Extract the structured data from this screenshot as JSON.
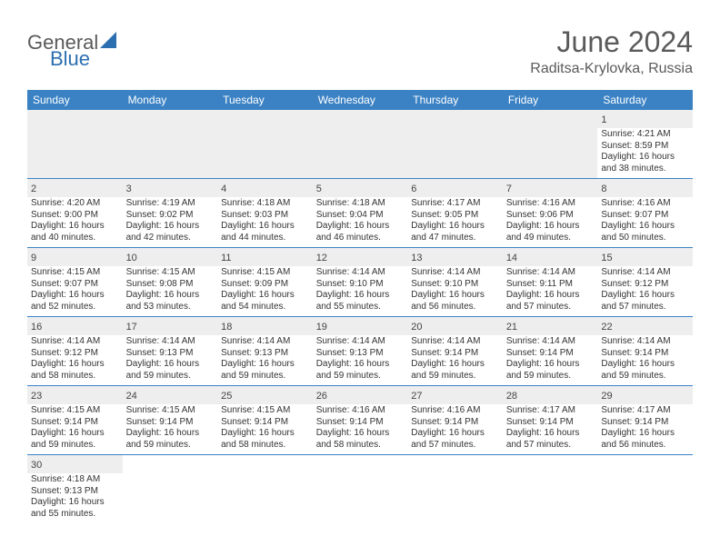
{
  "brand": {
    "part1": "General",
    "part2": "Blue"
  },
  "title": "June 2024",
  "location": "Raditsa-Krylovka, Russia",
  "colors": {
    "header_bg": "#3b82c4",
    "header_text": "#ffffff",
    "gray_band": "#eeeeee",
    "border": "#3b82c4",
    "body_text": "#333333",
    "brand_gray": "#5a5a5a",
    "brand_blue": "#2b6fb0"
  },
  "day_headers": [
    "Sunday",
    "Monday",
    "Tuesday",
    "Wednesday",
    "Thursday",
    "Friday",
    "Saturday"
  ],
  "weeks": [
    [
      null,
      null,
      null,
      null,
      null,
      null,
      {
        "n": "1",
        "lines": [
          "Sunrise: 4:21 AM",
          "Sunset: 8:59 PM",
          "Daylight: 16 hours",
          "and 38 minutes."
        ]
      }
    ],
    [
      {
        "n": "2",
        "lines": [
          "Sunrise: 4:20 AM",
          "Sunset: 9:00 PM",
          "Daylight: 16 hours",
          "and 40 minutes."
        ]
      },
      {
        "n": "3",
        "lines": [
          "Sunrise: 4:19 AM",
          "Sunset: 9:02 PM",
          "Daylight: 16 hours",
          "and 42 minutes."
        ]
      },
      {
        "n": "4",
        "lines": [
          "Sunrise: 4:18 AM",
          "Sunset: 9:03 PM",
          "Daylight: 16 hours",
          "and 44 minutes."
        ]
      },
      {
        "n": "5",
        "lines": [
          "Sunrise: 4:18 AM",
          "Sunset: 9:04 PM",
          "Daylight: 16 hours",
          "and 46 minutes."
        ]
      },
      {
        "n": "6",
        "lines": [
          "Sunrise: 4:17 AM",
          "Sunset: 9:05 PM",
          "Daylight: 16 hours",
          "and 47 minutes."
        ]
      },
      {
        "n": "7",
        "lines": [
          "Sunrise: 4:16 AM",
          "Sunset: 9:06 PM",
          "Daylight: 16 hours",
          "and 49 minutes."
        ]
      },
      {
        "n": "8",
        "lines": [
          "Sunrise: 4:16 AM",
          "Sunset: 9:07 PM",
          "Daylight: 16 hours",
          "and 50 minutes."
        ]
      }
    ],
    [
      {
        "n": "9",
        "lines": [
          "Sunrise: 4:15 AM",
          "Sunset: 9:07 PM",
          "Daylight: 16 hours",
          "and 52 minutes."
        ]
      },
      {
        "n": "10",
        "lines": [
          "Sunrise: 4:15 AM",
          "Sunset: 9:08 PM",
          "Daylight: 16 hours",
          "and 53 minutes."
        ]
      },
      {
        "n": "11",
        "lines": [
          "Sunrise: 4:15 AM",
          "Sunset: 9:09 PM",
          "Daylight: 16 hours",
          "and 54 minutes."
        ]
      },
      {
        "n": "12",
        "lines": [
          "Sunrise: 4:14 AM",
          "Sunset: 9:10 PM",
          "Daylight: 16 hours",
          "and 55 minutes."
        ]
      },
      {
        "n": "13",
        "lines": [
          "Sunrise: 4:14 AM",
          "Sunset: 9:10 PM",
          "Daylight: 16 hours",
          "and 56 minutes."
        ]
      },
      {
        "n": "14",
        "lines": [
          "Sunrise: 4:14 AM",
          "Sunset: 9:11 PM",
          "Daylight: 16 hours",
          "and 57 minutes."
        ]
      },
      {
        "n": "15",
        "lines": [
          "Sunrise: 4:14 AM",
          "Sunset: 9:12 PM",
          "Daylight: 16 hours",
          "and 57 minutes."
        ]
      }
    ],
    [
      {
        "n": "16",
        "lines": [
          "Sunrise: 4:14 AM",
          "Sunset: 9:12 PM",
          "Daylight: 16 hours",
          "and 58 minutes."
        ]
      },
      {
        "n": "17",
        "lines": [
          "Sunrise: 4:14 AM",
          "Sunset: 9:13 PM",
          "Daylight: 16 hours",
          "and 59 minutes."
        ]
      },
      {
        "n": "18",
        "lines": [
          "Sunrise: 4:14 AM",
          "Sunset: 9:13 PM",
          "Daylight: 16 hours",
          "and 59 minutes."
        ]
      },
      {
        "n": "19",
        "lines": [
          "Sunrise: 4:14 AM",
          "Sunset: 9:13 PM",
          "Daylight: 16 hours",
          "and 59 minutes."
        ]
      },
      {
        "n": "20",
        "lines": [
          "Sunrise: 4:14 AM",
          "Sunset: 9:14 PM",
          "Daylight: 16 hours",
          "and 59 minutes."
        ]
      },
      {
        "n": "21",
        "lines": [
          "Sunrise: 4:14 AM",
          "Sunset: 9:14 PM",
          "Daylight: 16 hours",
          "and 59 minutes."
        ]
      },
      {
        "n": "22",
        "lines": [
          "Sunrise: 4:14 AM",
          "Sunset: 9:14 PM",
          "Daylight: 16 hours",
          "and 59 minutes."
        ]
      }
    ],
    [
      {
        "n": "23",
        "lines": [
          "Sunrise: 4:15 AM",
          "Sunset: 9:14 PM",
          "Daylight: 16 hours",
          "and 59 minutes."
        ]
      },
      {
        "n": "24",
        "lines": [
          "Sunrise: 4:15 AM",
          "Sunset: 9:14 PM",
          "Daylight: 16 hours",
          "and 59 minutes."
        ]
      },
      {
        "n": "25",
        "lines": [
          "Sunrise: 4:15 AM",
          "Sunset: 9:14 PM",
          "Daylight: 16 hours",
          "and 58 minutes."
        ]
      },
      {
        "n": "26",
        "lines": [
          "Sunrise: 4:16 AM",
          "Sunset: 9:14 PM",
          "Daylight: 16 hours",
          "and 58 minutes."
        ]
      },
      {
        "n": "27",
        "lines": [
          "Sunrise: 4:16 AM",
          "Sunset: 9:14 PM",
          "Daylight: 16 hours",
          "and 57 minutes."
        ]
      },
      {
        "n": "28",
        "lines": [
          "Sunrise: 4:17 AM",
          "Sunset: 9:14 PM",
          "Daylight: 16 hours",
          "and 57 minutes."
        ]
      },
      {
        "n": "29",
        "lines": [
          "Sunrise: 4:17 AM",
          "Sunset: 9:14 PM",
          "Daylight: 16 hours",
          "and 56 minutes."
        ]
      }
    ],
    [
      {
        "n": "30",
        "lines": [
          "Sunrise: 4:18 AM",
          "Sunset: 9:13 PM",
          "Daylight: 16 hours",
          "and 55 minutes."
        ]
      },
      null,
      null,
      null,
      null,
      null,
      null
    ]
  ]
}
